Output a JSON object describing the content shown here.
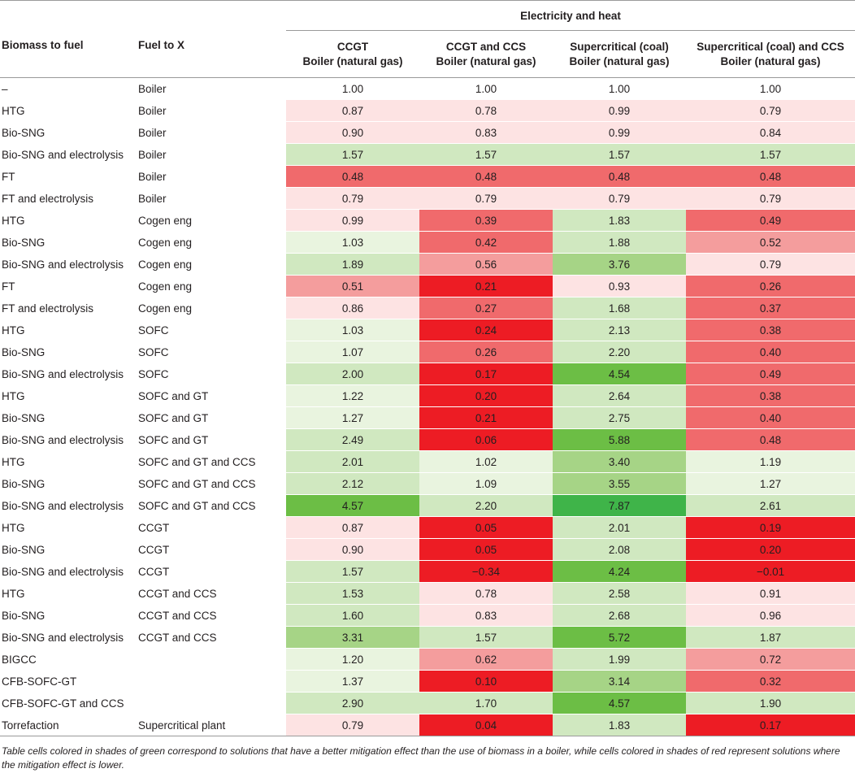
{
  "header": {
    "group_label": "Electricity and heat",
    "columns": [
      "Biomass to fuel",
      "Fuel to X",
      [
        "CCGT",
        "Boiler (natural gas)"
      ],
      [
        "CCGT and CCS",
        "Boiler (natural gas)"
      ],
      [
        "Supercritical (coal)",
        "Boiler (natural gas)"
      ],
      [
        "Supercritical (coal) and CCS",
        "Boiler (natural gas)"
      ]
    ]
  },
  "palette": {
    "white": "#ffffff",
    "pale_red": "#fde3e3",
    "light_red": "#f49d9d",
    "mid_red": "#f06a6c",
    "strong_red": "#ed1c24",
    "pale_green": "#e9f4df",
    "light_green": "#d0e8c0",
    "mid_green": "#a6d486",
    "strong_green": "#6cbe45",
    "deep_green": "#3fb449"
  },
  "rows": [
    {
      "fuel": "–",
      "x": "Boiler",
      "v": [
        "1.00",
        "1.00",
        "1.00",
        "1.00"
      ],
      "c": [
        "white",
        "white",
        "white",
        "white"
      ]
    },
    {
      "fuel": "HTG",
      "x": "Boiler",
      "v": [
        "0.87",
        "0.78",
        "0.99",
        "0.79"
      ],
      "c": [
        "pale_red",
        "pale_red",
        "pale_red",
        "pale_red"
      ]
    },
    {
      "fuel": "Bio-SNG",
      "x": "Boiler",
      "v": [
        "0.90",
        "0.83",
        "0.99",
        "0.84"
      ],
      "c": [
        "pale_red",
        "pale_red",
        "pale_red",
        "pale_red"
      ]
    },
    {
      "fuel": "Bio-SNG and electrolysis",
      "x": "Boiler",
      "v": [
        "1.57",
        "1.57",
        "1.57",
        "1.57"
      ],
      "c": [
        "light_green",
        "light_green",
        "light_green",
        "light_green"
      ]
    },
    {
      "fuel": "FT",
      "x": "Boiler",
      "v": [
        "0.48",
        "0.48",
        "0.48",
        "0.48"
      ],
      "c": [
        "mid_red",
        "mid_red",
        "mid_red",
        "mid_red"
      ]
    },
    {
      "fuel": "FT and electrolysis",
      "x": "Boiler",
      "v": [
        "0.79",
        "0.79",
        "0.79",
        "0.79"
      ],
      "c": [
        "pale_red",
        "pale_red",
        "pale_red",
        "pale_red"
      ]
    },
    {
      "fuel": "HTG",
      "x": "Cogen eng",
      "v": [
        "0.99",
        "0.39",
        "1.83",
        "0.49"
      ],
      "c": [
        "pale_red",
        "mid_red",
        "light_green",
        "mid_red"
      ]
    },
    {
      "fuel": "Bio-SNG",
      "x": "Cogen eng",
      "v": [
        "1.03",
        "0.42",
        "1.88",
        "0.52"
      ],
      "c": [
        "pale_green",
        "mid_red",
        "light_green",
        "light_red"
      ]
    },
    {
      "fuel": "Bio-SNG and electrolysis",
      "x": "Cogen eng",
      "v": [
        "1.89",
        "0.56",
        "3.76",
        "0.79"
      ],
      "c": [
        "light_green",
        "light_red",
        "mid_green",
        "pale_red"
      ]
    },
    {
      "fuel": "FT",
      "x": "Cogen eng",
      "v": [
        "0.51",
        "0.21",
        "0.93",
        "0.26"
      ],
      "c": [
        "light_red",
        "strong_red",
        "pale_red",
        "mid_red"
      ]
    },
    {
      "fuel": "FT and electrolysis",
      "x": "Cogen eng",
      "v": [
        "0.86",
        "0.27",
        "1.68",
        "0.37"
      ],
      "c": [
        "pale_red",
        "mid_red",
        "light_green",
        "mid_red"
      ]
    },
    {
      "fuel": "HTG",
      "x": "SOFC",
      "v": [
        "1.03",
        "0.24",
        "2.13",
        "0.38"
      ],
      "c": [
        "pale_green",
        "strong_red",
        "light_green",
        "mid_red"
      ]
    },
    {
      "fuel": "Bio-SNG",
      "x": "SOFC",
      "v": [
        "1.07",
        "0.26",
        "2.20",
        "0.40"
      ],
      "c": [
        "pale_green",
        "mid_red",
        "light_green",
        "mid_red"
      ]
    },
    {
      "fuel": "Bio-SNG and electrolysis",
      "x": "SOFC",
      "v": [
        "2.00",
        "0.17",
        "4.54",
        "0.49"
      ],
      "c": [
        "light_green",
        "strong_red",
        "strong_green",
        "mid_red"
      ]
    },
    {
      "fuel": "HTG",
      "x": "SOFC and GT",
      "v": [
        "1.22",
        "0.20",
        "2.64",
        "0.38"
      ],
      "c": [
        "pale_green",
        "strong_red",
        "light_green",
        "mid_red"
      ]
    },
    {
      "fuel": "Bio-SNG",
      "x": "SOFC and GT",
      "v": [
        "1.27",
        "0.21",
        "2.75",
        "0.40"
      ],
      "c": [
        "pale_green",
        "strong_red",
        "light_green",
        "mid_red"
      ]
    },
    {
      "fuel": "Bio-SNG and electrolysis",
      "x": "SOFC and GT",
      "v": [
        "2.49",
        "0.06",
        "5.88",
        "0.48"
      ],
      "c": [
        "light_green",
        "strong_red",
        "strong_green",
        "mid_red"
      ]
    },
    {
      "fuel": "HTG",
      "x": "SOFC and GT and CCS",
      "v": [
        "2.01",
        "1.02",
        "3.40",
        "1.19"
      ],
      "c": [
        "light_green",
        "pale_green",
        "mid_green",
        "pale_green"
      ]
    },
    {
      "fuel": "Bio-SNG",
      "x": "SOFC and GT and CCS",
      "v": [
        "2.12",
        "1.09",
        "3.55",
        "1.27"
      ],
      "c": [
        "light_green",
        "pale_green",
        "mid_green",
        "pale_green"
      ]
    },
    {
      "fuel": "Bio-SNG and electrolysis",
      "x": "SOFC and GT and CCS",
      "v": [
        "4.57",
        "2.20",
        "7.87",
        "2.61"
      ],
      "c": [
        "strong_green",
        "light_green",
        "deep_green",
        "light_green"
      ]
    },
    {
      "fuel": "HTG",
      "x": "CCGT",
      "v": [
        "0.87",
        "0.05",
        "2.01",
        "0.19"
      ],
      "c": [
        "pale_red",
        "strong_red",
        "light_green",
        "strong_red"
      ]
    },
    {
      "fuel": "Bio-SNG",
      "x": "CCGT",
      "v": [
        "0.90",
        "0.05",
        "2.08",
        "0.20"
      ],
      "c": [
        "pale_red",
        "strong_red",
        "light_green",
        "strong_red"
      ]
    },
    {
      "fuel": "Bio-SNG and electrolysis",
      "x": "CCGT",
      "v": [
        "1.57",
        "−0.34",
        "4.24",
        "−0.01"
      ],
      "c": [
        "light_green",
        "strong_red",
        "strong_green",
        "strong_red"
      ]
    },
    {
      "fuel": "HTG",
      "x": "CCGT and CCS",
      "v": [
        "1.53",
        "0.78",
        "2.58",
        "0.91"
      ],
      "c": [
        "light_green",
        "pale_red",
        "light_green",
        "pale_red"
      ]
    },
    {
      "fuel": "Bio-SNG",
      "x": "CCGT and CCS",
      "v": [
        "1.60",
        "0.83",
        "2.68",
        "0.96"
      ],
      "c": [
        "light_green",
        "pale_red",
        "light_green",
        "pale_red"
      ]
    },
    {
      "fuel": "Bio-SNG and electrolysis",
      "x": "CCGT and CCS",
      "v": [
        "3.31",
        "1.57",
        "5.72",
        "1.87"
      ],
      "c": [
        "mid_green",
        "light_green",
        "strong_green",
        "light_green"
      ]
    },
    {
      "fuel": "BIGCC",
      "x": "",
      "v": [
        "1.20",
        "0.62",
        "1.99",
        "0.72"
      ],
      "c": [
        "pale_green",
        "light_red",
        "light_green",
        "light_red"
      ]
    },
    {
      "fuel": "CFB-SOFC-GT",
      "x": "",
      "v": [
        "1.37",
        "0.10",
        "3.14",
        "0.32"
      ],
      "c": [
        "pale_green",
        "strong_red",
        "mid_green",
        "mid_red"
      ]
    },
    {
      "fuel": "CFB-SOFC-GT and CCS",
      "x": "",
      "v": [
        "2.90",
        "1.70",
        "4.57",
        "1.90"
      ],
      "c": [
        "light_green",
        "light_green",
        "strong_green",
        "light_green"
      ]
    },
    {
      "fuel": "Torrefaction",
      "x": "Supercritical plant",
      "v": [
        "0.79",
        "0.04",
        "1.83",
        "0.17"
      ],
      "c": [
        "pale_red",
        "strong_red",
        "light_green",
        "strong_red"
      ]
    }
  ],
  "footnote": "Table cells colored in shades of green correspond to solutions that have a better mitigation effect than the use of biomass in a boiler, while cells colored in shades of red represent solutions where the mitigation effect is lower."
}
